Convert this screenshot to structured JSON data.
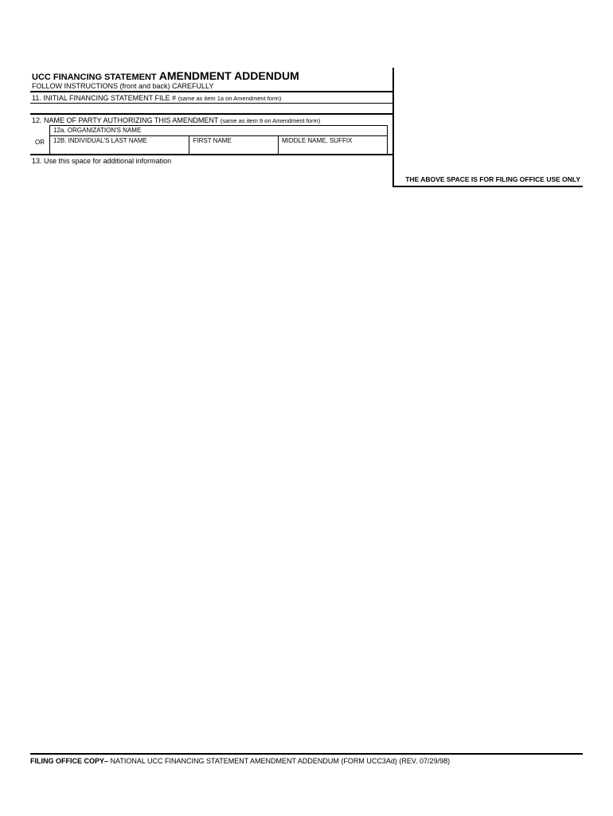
{
  "header": {
    "title_prefix": "UCC FINANCING STATEMENT",
    "title_main": "AMENDMENT ADDENDUM",
    "instructions": "FOLLOW INSTRUCTIONS (front and back) CAREFULLY"
  },
  "fields": {
    "f11_label": "11. INITIAL FINANCING STATEMENT FILE #",
    "f11_note": "(same as item 1a on Amendment form)",
    "f12_label": "12. NAME OF PARTY AUTHORIZING THIS AMENDMENT",
    "f12_note": "(same as item 9 on Amendment form)",
    "f12a_label": "12a. ORGANIZATION'S NAME",
    "or_label": "OR",
    "f12b_last": "12B. INDIVIDUAL'S LAST NAME",
    "f12b_first": "FIRST NAME",
    "f12b_middle": "MIDDLE NAME, SUFFIX",
    "f13_label": "13. Use this space for additional information"
  },
  "filing_notice": "THE ABOVE SPACE IS FOR FILING OFFICE USE ONLY",
  "footer": {
    "bold": "FILING OFFICE COPY–",
    "rest": " NATIONAL UCC FINANCING STATEMENT AMENDMENT ADDENDUM (FORM UCC3Ad) (REV. 07/29/98)"
  }
}
